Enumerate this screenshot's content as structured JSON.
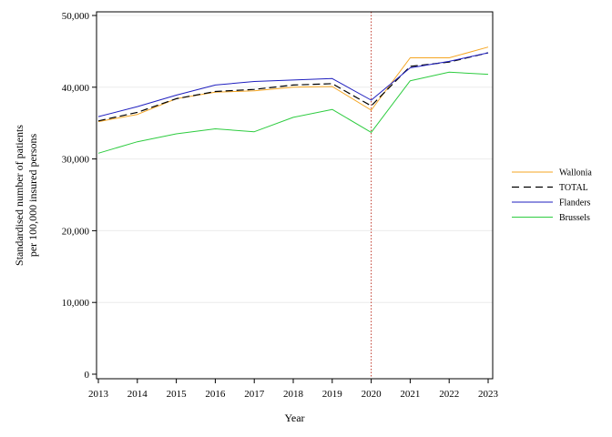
{
  "chart_data": {
    "type": "line",
    "xlabel": "Year",
    "ylabel_lines": [
      "Standardised number of patients",
      "per 100,000 insured persons"
    ],
    "ylim": [
      0,
      50000
    ],
    "y_ticks": [
      0,
      10000,
      20000,
      30000,
      40000,
      50000
    ],
    "y_tick_labels": [
      "0",
      "10,000",
      "20,000",
      "30,000",
      "40,000",
      "50,000"
    ],
    "x": [
      2013,
      2014,
      2015,
      2016,
      2017,
      2018,
      2019,
      2020,
      2021,
      2022,
      2023
    ],
    "x_tick_labels": [
      "2013",
      "2014",
      "2015",
      "2016",
      "2017",
      "2018",
      "2019",
      "2020",
      "2021",
      "2022",
      "2023"
    ],
    "reference_line": {
      "x": 2020,
      "color": "#c0392b",
      "style": "dotted"
    },
    "grid": "horizontal",
    "legend_position": "right",
    "series": [
      {
        "name": "Wallonia",
        "color": "#f5a623",
        "dash": "solid",
        "values": [
          35200,
          36200,
          38400,
          39300,
          39500,
          40000,
          40100,
          36800,
          44100,
          44100,
          45600
        ]
      },
      {
        "name": "TOTAL",
        "color": "#000000",
        "dash": "dashed",
        "values": [
          35300,
          36500,
          38400,
          39400,
          39700,
          40300,
          40500,
          37400,
          42900,
          43500,
          44800
        ]
      },
      {
        "name": "Flanders",
        "color": "#1f1fbf",
        "dash": "solid",
        "values": [
          35900,
          37300,
          38900,
          40300,
          40800,
          41000,
          41200,
          38200,
          42700,
          43600,
          44800
        ]
      },
      {
        "name": "Brussels",
        "color": "#2ecc40",
        "dash": "solid",
        "values": [
          30800,
          32400,
          33500,
          34200,
          33800,
          35800,
          36900,
          33700,
          40900,
          42100,
          41800
        ]
      }
    ]
  }
}
